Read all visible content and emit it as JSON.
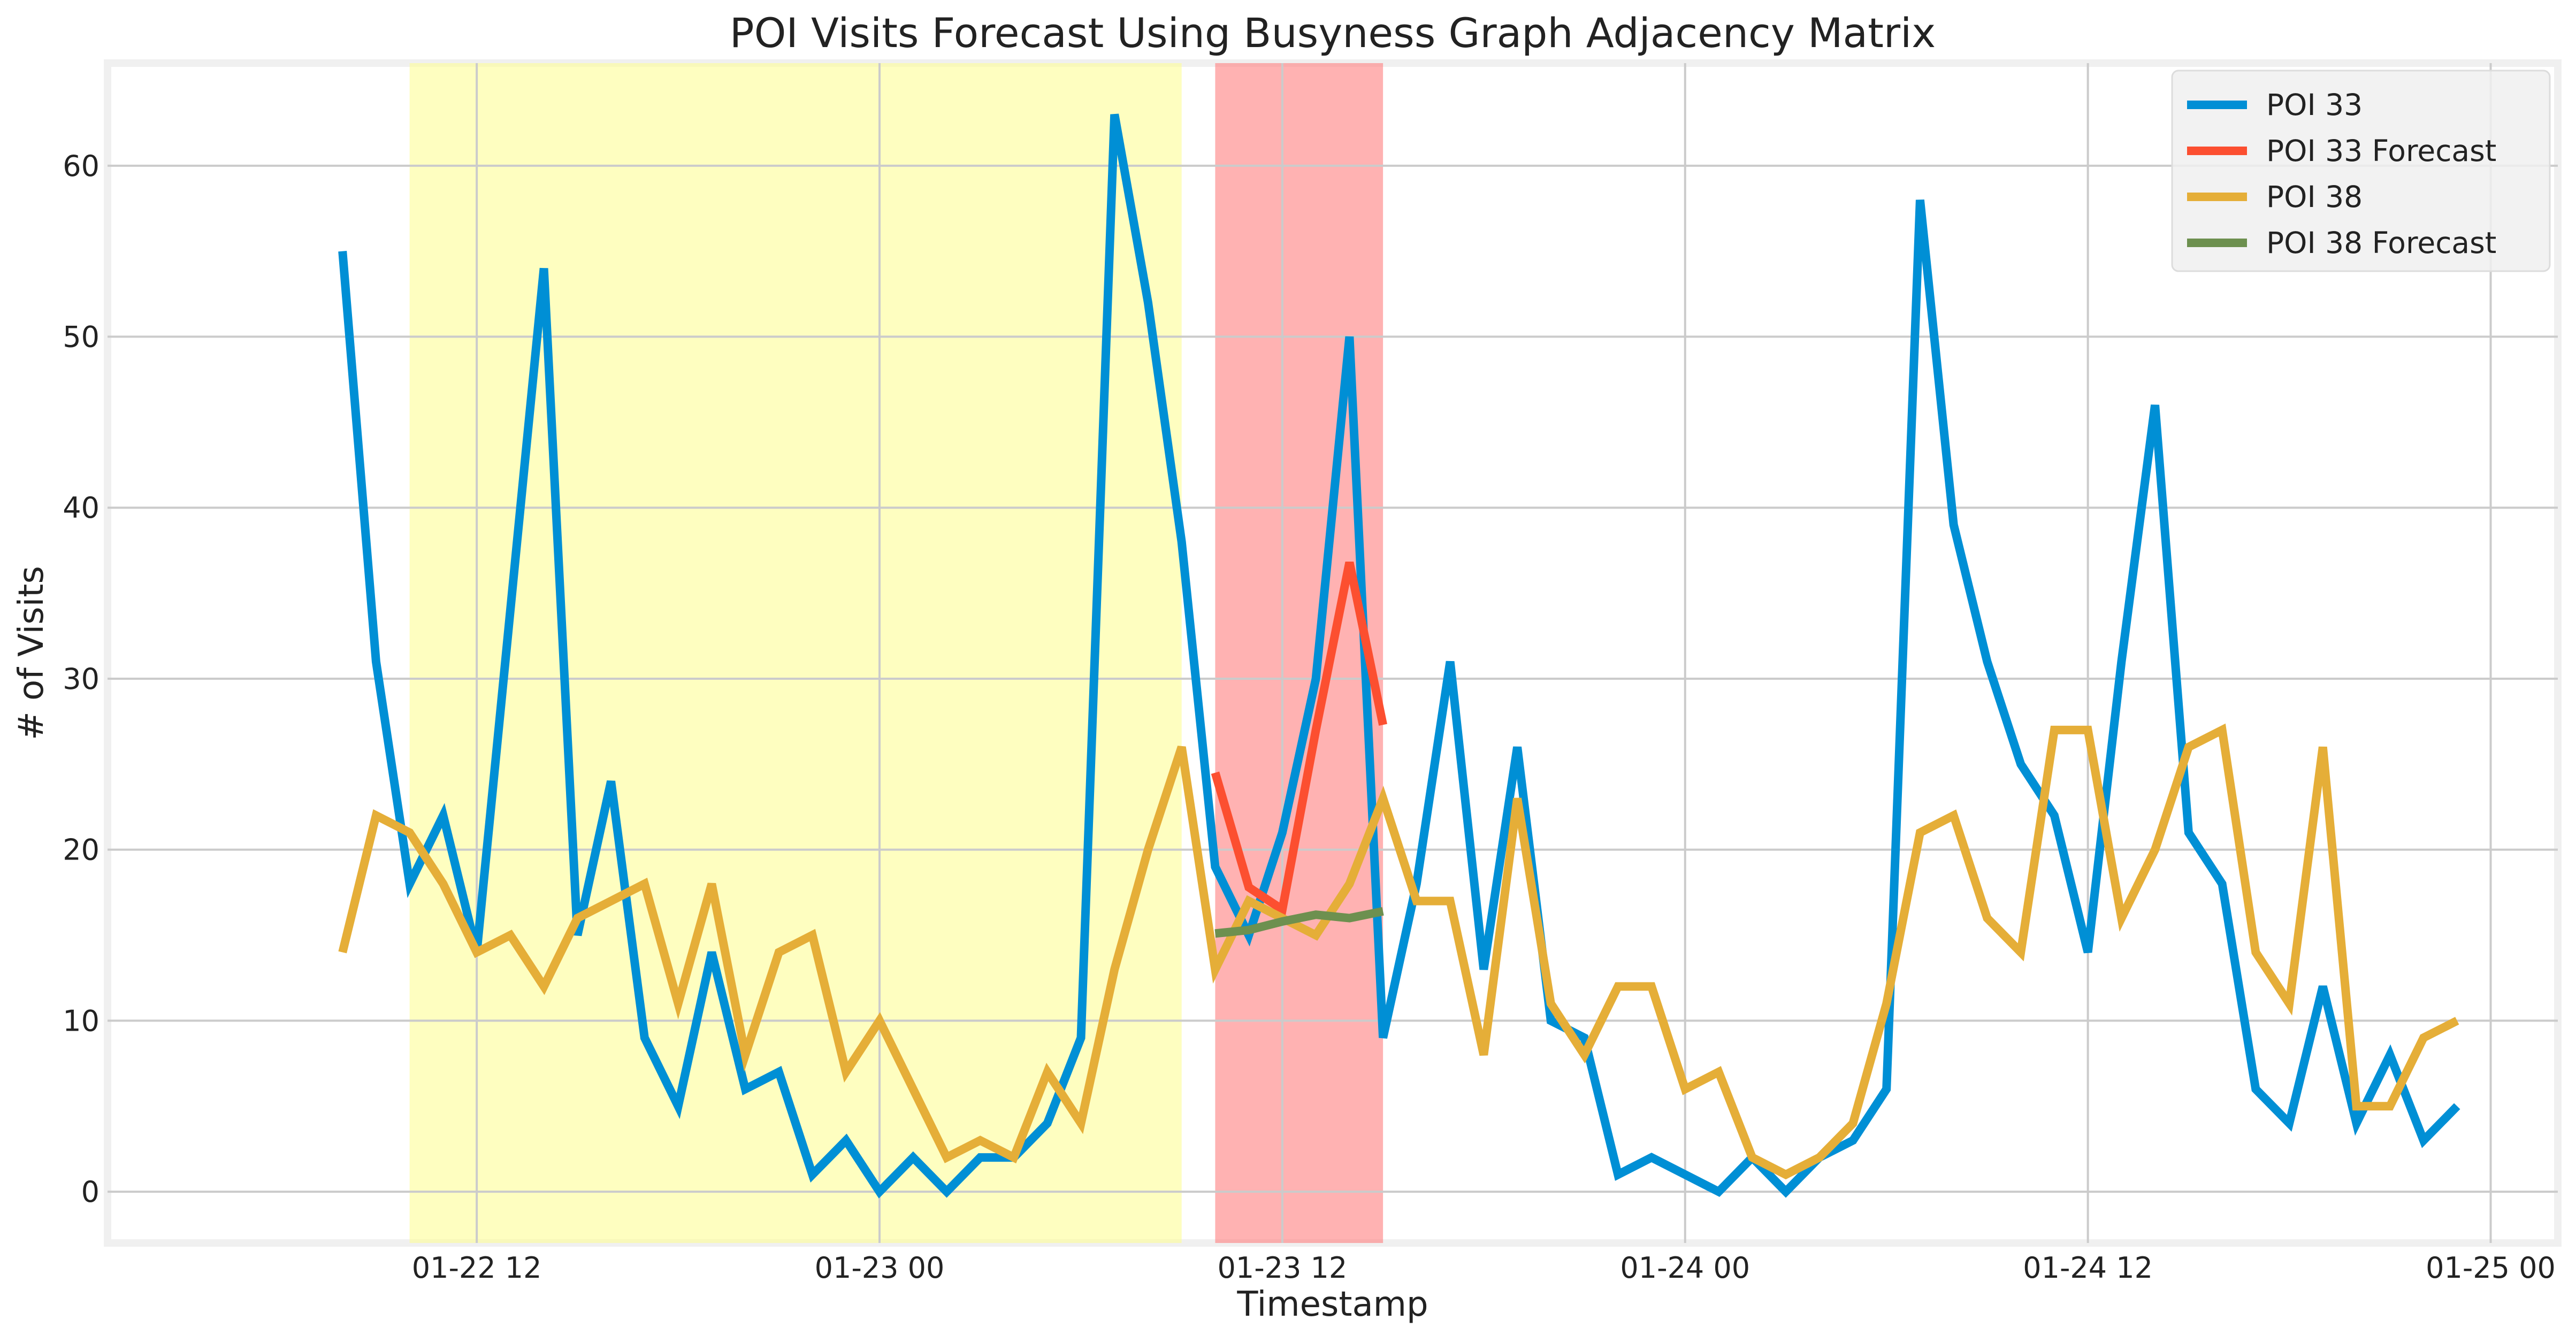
{
  "chart_data": {
    "type": "line",
    "title": "POI Visits Forecast Using Busyness Graph Adjacency Matrix",
    "xlabel": "Timestamp",
    "ylabel": "# of Visits",
    "xlim": [
      "2021-01-22 01:00",
      "2021-01-25 02:00"
    ],
    "ylim": [
      -3,
      66
    ],
    "x_ticks": [
      "01-22 12",
      "01-23 00",
      "01-23 12",
      "01-24 00",
      "01-24 12",
      "01-25 00"
    ],
    "y_ticks": [
      0,
      10,
      20,
      30,
      40,
      50,
      60
    ],
    "grid": true,
    "legend_position": "top-right",
    "shaded_regions": [
      {
        "start": "2021-01-22 10:00",
        "end": "2021-01-23 09:00",
        "color": "#fdfd96",
        "role": "input window"
      },
      {
        "start": "2021-01-23 10:00",
        "end": "2021-01-23 15:00",
        "color": "#ff7f7f",
        "role": "forecast window"
      }
    ],
    "series": [
      {
        "name": "POI 33",
        "color": "#008fd5",
        "x": [
          "2021-01-22 08:00",
          "2021-01-22 09:00",
          "2021-01-22 10:00",
          "2021-01-22 11:00",
          "2021-01-22 12:00",
          "2021-01-22 13:00",
          "2021-01-22 14:00",
          "2021-01-22 15:00",
          "2021-01-22 16:00",
          "2021-01-22 17:00",
          "2021-01-22 18:00",
          "2021-01-22 19:00",
          "2021-01-22 20:00",
          "2021-01-22 21:00",
          "2021-01-22 22:00",
          "2021-01-22 23:00",
          "2021-01-23 00:00",
          "2021-01-23 01:00",
          "2021-01-23 02:00",
          "2021-01-23 03:00",
          "2021-01-23 04:00",
          "2021-01-23 05:00",
          "2021-01-23 06:00",
          "2021-01-23 07:00",
          "2021-01-23 08:00",
          "2021-01-23 09:00",
          "2021-01-23 10:00",
          "2021-01-23 11:00",
          "2021-01-23 12:00",
          "2021-01-23 13:00",
          "2021-01-23 14:00",
          "2021-01-23 15:00",
          "2021-01-23 16:00",
          "2021-01-23 17:00",
          "2021-01-23 18:00",
          "2021-01-23 19:00",
          "2021-01-23 20:00",
          "2021-01-23 21:00",
          "2021-01-23 22:00",
          "2021-01-23 23:00",
          "2021-01-24 00:00",
          "2021-01-24 01:00",
          "2021-01-24 02:00",
          "2021-01-24 03:00",
          "2021-01-24 04:00",
          "2021-01-24 05:00",
          "2021-01-24 06:00",
          "2021-01-24 07:00",
          "2021-01-24 08:00",
          "2021-01-24 09:00",
          "2021-01-24 10:00",
          "2021-01-24 11:00",
          "2021-01-24 12:00",
          "2021-01-24 13:00",
          "2021-01-24 14:00",
          "2021-01-24 15:00",
          "2021-01-24 16:00",
          "2021-01-24 17:00",
          "2021-01-24 18:00",
          "2021-01-24 19:00",
          "2021-01-24 20:00",
          "2021-01-24 21:00",
          "2021-01-24 22:00",
          "2021-01-24 23:00"
        ],
        "y": [
          55,
          31,
          18,
          22,
          14,
          34,
          54,
          15,
          24,
          9,
          5,
          14,
          6,
          7,
          1,
          3,
          0,
          2,
          0,
          2,
          2,
          4,
          9,
          63,
          52,
          38,
          19,
          15,
          21,
          30,
          50,
          9,
          18,
          31,
          13,
          26,
          10,
          9,
          1,
          2,
          1,
          0,
          2,
          0,
          2,
          3,
          6,
          58,
          39,
          31,
          25,
          22,
          14,
          31,
          46,
          21,
          18,
          6,
          4,
          12,
          4,
          8,
          3,
          5
        ]
      },
      {
        "name": "POI 33 Forecast",
        "color": "#fc4f30",
        "x": [
          "2021-01-23 10:00",
          "2021-01-23 11:00",
          "2021-01-23 12:00",
          "2021-01-23 13:00",
          "2021-01-23 14:00",
          "2021-01-23 15:00"
        ],
        "y": [
          24.5,
          17.8,
          16.5,
          27,
          36.8,
          27.3
        ]
      },
      {
        "name": "POI 38",
        "color": "#e5ae38",
        "x": [
          "2021-01-22 08:00",
          "2021-01-22 09:00",
          "2021-01-22 10:00",
          "2021-01-22 11:00",
          "2021-01-22 12:00",
          "2021-01-22 13:00",
          "2021-01-22 14:00",
          "2021-01-22 15:00",
          "2021-01-22 16:00",
          "2021-01-22 17:00",
          "2021-01-22 18:00",
          "2021-01-22 19:00",
          "2021-01-22 20:00",
          "2021-01-22 21:00",
          "2021-01-22 22:00",
          "2021-01-22 23:00",
          "2021-01-23 00:00",
          "2021-01-23 01:00",
          "2021-01-23 02:00",
          "2021-01-23 03:00",
          "2021-01-23 04:00",
          "2021-01-23 05:00",
          "2021-01-23 06:00",
          "2021-01-23 07:00",
          "2021-01-23 08:00",
          "2021-01-23 09:00",
          "2021-01-23 10:00",
          "2021-01-23 11:00",
          "2021-01-23 12:00",
          "2021-01-23 13:00",
          "2021-01-23 14:00",
          "2021-01-23 15:00",
          "2021-01-23 16:00",
          "2021-01-23 17:00",
          "2021-01-23 18:00",
          "2021-01-23 19:00",
          "2021-01-23 20:00",
          "2021-01-23 21:00",
          "2021-01-23 22:00",
          "2021-01-23 23:00",
          "2021-01-24 00:00",
          "2021-01-24 01:00",
          "2021-01-24 02:00",
          "2021-01-24 03:00",
          "2021-01-24 04:00",
          "2021-01-24 05:00",
          "2021-01-24 06:00",
          "2021-01-24 07:00",
          "2021-01-24 08:00",
          "2021-01-24 09:00",
          "2021-01-24 10:00",
          "2021-01-24 11:00",
          "2021-01-24 12:00",
          "2021-01-24 13:00",
          "2021-01-24 14:00",
          "2021-01-24 15:00",
          "2021-01-24 16:00",
          "2021-01-24 17:00",
          "2021-01-24 18:00",
          "2021-01-24 19:00",
          "2021-01-24 20:00",
          "2021-01-24 21:00",
          "2021-01-24 22:00",
          "2021-01-24 23:00"
        ],
        "y": [
          14,
          22,
          21,
          18,
          14,
          15,
          12,
          16,
          17,
          18,
          11,
          18,
          8,
          14,
          15,
          7,
          10,
          6,
          2,
          3,
          2,
          7,
          4,
          13,
          20,
          26,
          13,
          17,
          16,
          15,
          18,
          23,
          17,
          17,
          8,
          23,
          11,
          8,
          12,
          12,
          6,
          7,
          2,
          1,
          2,
          4,
          11,
          21,
          22,
          16,
          14,
          27,
          27,
          16,
          20,
          26,
          27,
          14,
          11,
          26,
          5,
          5,
          9,
          10
        ]
      },
      {
        "name": "POI 38 Forecast",
        "color": "#6d904f",
        "x": [
          "2021-01-23 10:00",
          "2021-01-23 11:00",
          "2021-01-23 12:00",
          "2021-01-23 13:00",
          "2021-01-23 14:00",
          "2021-01-23 15:00"
        ],
        "y": [
          15.1,
          15.3,
          15.8,
          16.2,
          16,
          16.4
        ]
      }
    ]
  }
}
